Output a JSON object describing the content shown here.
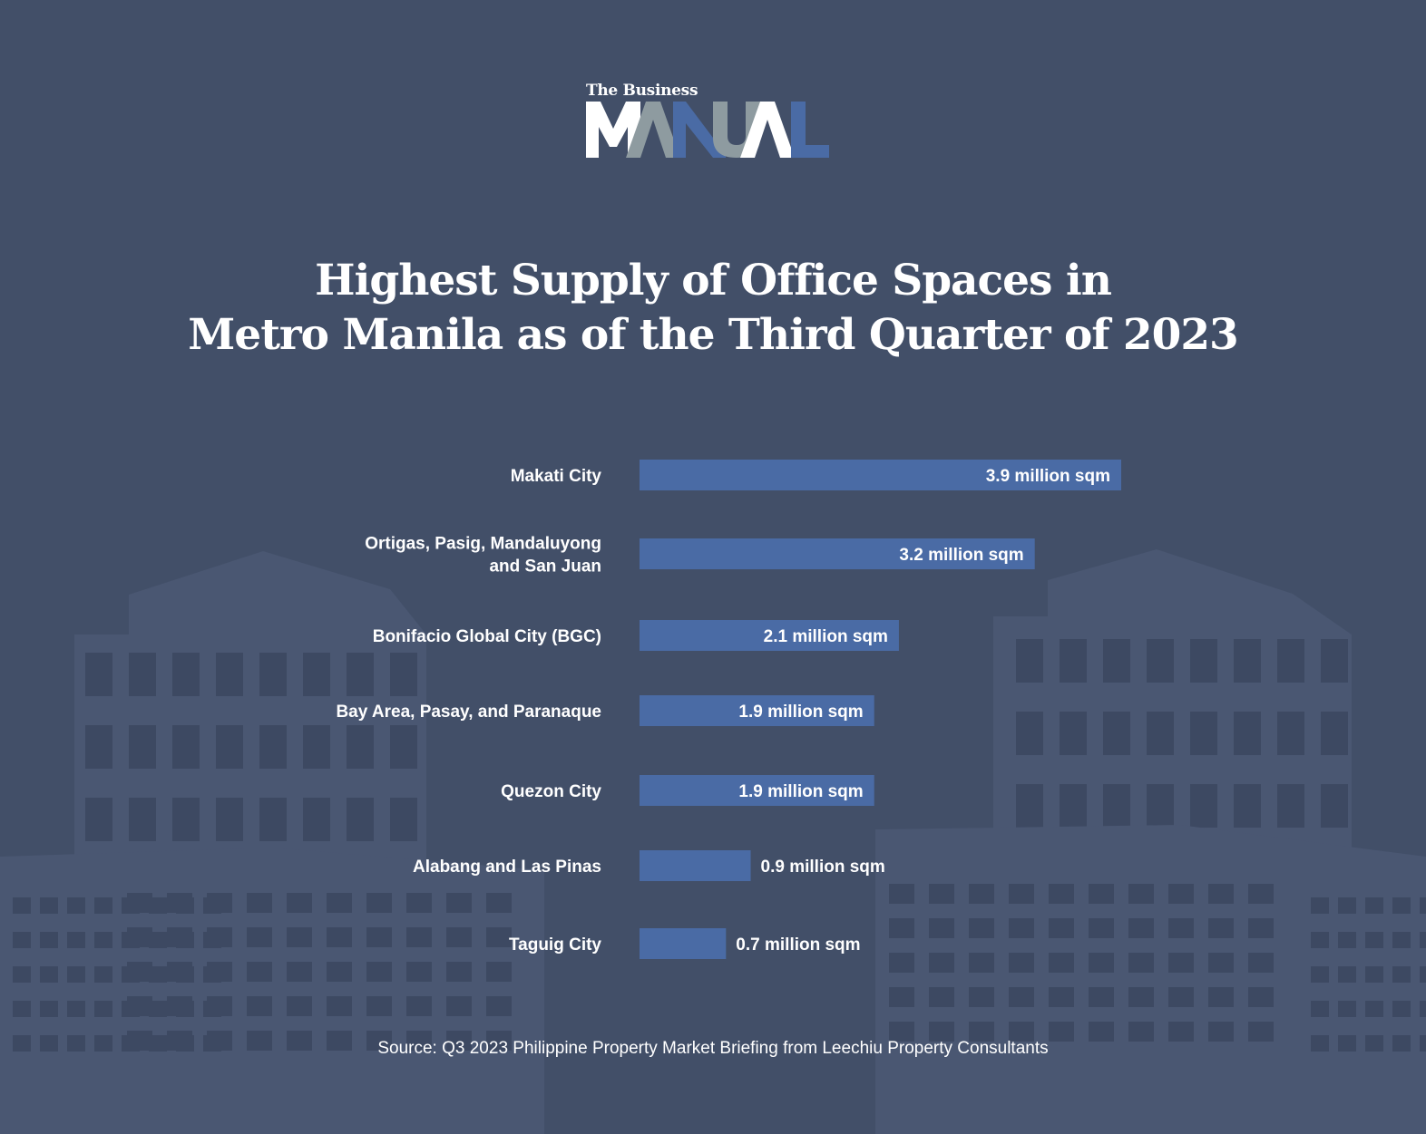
{
  "logo": {
    "top_text": "The Business",
    "main_text": "MANUAL"
  },
  "colors": {
    "background": "#424f68",
    "bar": "#4a6ba5",
    "silhouette": "#4a5772",
    "window": "#3d4962",
    "logo_grey": "#8e9ba0",
    "logo_blue": "#4a6ba5"
  },
  "chart_data": {
    "type": "bar",
    "orientation": "horizontal",
    "title": "Highest Supply of Office Spaces in Metro Manila as of the Third Quarter of 2023",
    "title_lines": [
      "Highest Supply of Office Spaces in",
      "Metro Manila as of the Third Quarter of 2023"
    ],
    "categories": [
      [
        "Makati City"
      ],
      [
        "Ortigas, Pasig, Mandaluyong",
        "and San Juan"
      ],
      [
        "Bonifacio Global City (BGC)"
      ],
      [
        "Bay Area, Pasay, and Paranaque"
      ],
      [
        "Quezon City"
      ],
      [
        "Alabang and Las Pinas"
      ],
      [
        "Taguig City"
      ]
    ],
    "values": [
      3.9,
      3.2,
      2.1,
      1.9,
      1.9,
      0.9,
      0.7
    ],
    "data_labels": [
      "3.9 million sqm",
      "3.2 million sqm",
      "2.1 million sqm",
      "1.9 million sqm",
      "1.9 million sqm",
      "0.9 million sqm",
      "0.7 million sqm"
    ],
    "unit": "million sqm",
    "xlim": [
      0,
      3.9
    ],
    "grid": false,
    "legend": "none",
    "source": "Source: Q3 2023 Philippine Property Market Briefing from Leechiu Property Consultants"
  }
}
